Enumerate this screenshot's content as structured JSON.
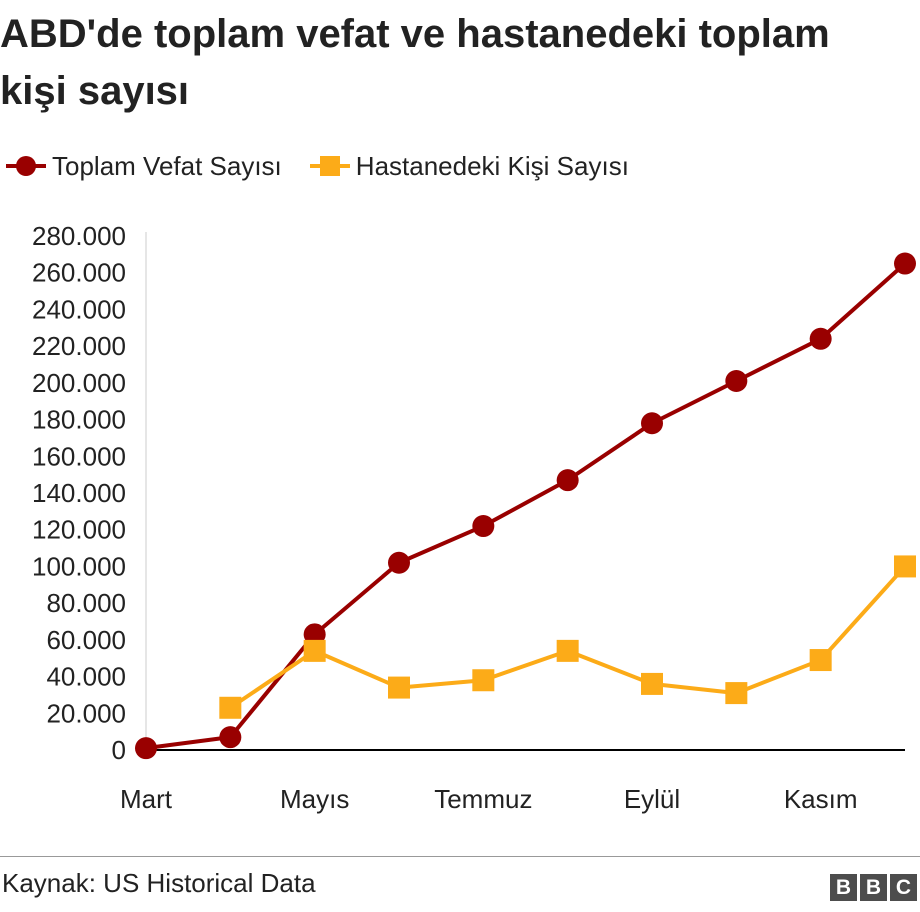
{
  "chart_data": {
    "type": "line",
    "title": "ABD'de toplam vefat ve hastanedeki toplam kişi sayısı",
    "xlabel": "",
    "ylabel": "",
    "ylim": [
      0,
      280000
    ],
    "yticks": [
      0,
      20000,
      40000,
      60000,
      80000,
      100000,
      120000,
      140000,
      160000,
      180000,
      200000,
      220000,
      240000,
      260000,
      280000
    ],
    "ytick_labels": [
      "0",
      "20.000",
      "40.000",
      "60.000",
      "80.000",
      "100.000",
      "120.000",
      "140.000",
      "160.000",
      "180.000",
      "200.000",
      "220.000",
      "240.000",
      "260.000",
      "280.000"
    ],
    "x_count": 10,
    "x_tick_labels": [
      {
        "index": 0,
        "label": "Mart"
      },
      {
        "index": 2,
        "label": "Mayıs"
      },
      {
        "index": 4,
        "label": "Temmuz"
      },
      {
        "index": 6,
        "label": "Eylül"
      },
      {
        "index": 8,
        "label": "Kasım"
      }
    ],
    "grid": false,
    "legend_position": "top-left",
    "series": [
      {
        "name": "Toplam Vefat Sayısı",
        "color": "#990000",
        "marker": "circle",
        "values": [
          1000,
          7000,
          63000,
          102000,
          122000,
          147000,
          178000,
          201000,
          224000,
          265000
        ]
      },
      {
        "name": "Hastanedeki Kişi Sayısı",
        "color": "#fcab18",
        "marker": "square",
        "values": [
          null,
          23000,
          54000,
          34000,
          38000,
          54000,
          36000,
          31000,
          49000,
          100000
        ]
      }
    ]
  },
  "footer": {
    "source": "Kaynak: US Historical Data",
    "logo_letters": [
      "B",
      "B",
      "C"
    ]
  }
}
